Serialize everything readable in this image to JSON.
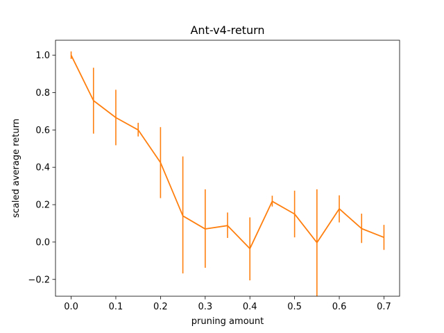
{
  "chart_data": {
    "type": "line",
    "title": "Ant-v4-return",
    "xlabel": "pruning amount",
    "ylabel": "scaled average return",
    "xlim": [
      -0.035,
      0.735
    ],
    "ylim": [
      -0.29,
      1.08
    ],
    "xticks": [
      0.0,
      0.1,
      0.2,
      0.3,
      0.4,
      0.5,
      0.6,
      0.7
    ],
    "xtick_labels": [
      "0.0",
      "0.1",
      "0.2",
      "0.3",
      "0.4",
      "0.5",
      "0.6",
      "0.7"
    ],
    "yticks": [
      -0.2,
      0.0,
      0.2,
      0.4,
      0.6,
      0.8,
      1.0
    ],
    "ytick_labels": [
      "−0.2",
      "0.0",
      "0.2",
      "0.4",
      "0.6",
      "0.8",
      "1.0"
    ],
    "grid": false,
    "color": "#ff7f0e",
    "series": [
      {
        "x": [
          0.0,
          0.05,
          0.1,
          0.15,
          0.2,
          0.25,
          0.3,
          0.35,
          0.4,
          0.45,
          0.5,
          0.55,
          0.6,
          0.65,
          0.7
        ],
        "y": [
          1.0,
          0.757,
          0.666,
          0.6,
          0.425,
          0.14,
          0.07,
          0.088,
          -0.035,
          0.218,
          0.15,
          -0.003,
          0.178,
          0.072,
          0.025
        ],
        "yerr_low": [
          0.98,
          0.58,
          0.518,
          0.565,
          0.235,
          -0.168,
          -0.138,
          0.022,
          -0.205,
          0.19,
          0.025,
          -0.29,
          0.105,
          -0.005,
          -0.042
        ],
        "yerr_high": [
          1.02,
          0.933,
          0.815,
          0.638,
          0.615,
          0.458,
          0.282,
          0.158,
          0.132,
          0.248,
          0.275,
          0.282,
          0.25,
          0.152,
          0.092
        ]
      }
    ]
  }
}
